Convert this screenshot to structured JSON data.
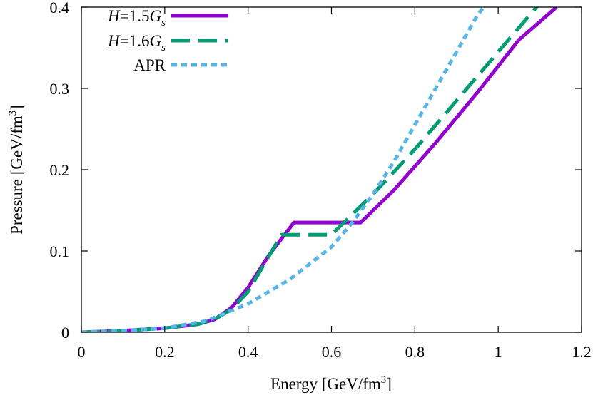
{
  "chart_data": {
    "type": "line",
    "xlabel": "Energy [GeV/fm",
    "xlabel_sup": "3",
    "xlabel_close": "]",
    "ylabel": "Pressure [GeV/fm",
    "ylabel_sup": "3",
    "ylabel_close": "]",
    "xlim": [
      0,
      1.2
    ],
    "ylim": [
      0,
      0.4
    ],
    "xticks": [
      "0",
      "0.2",
      "0.4",
      "0.6",
      "0.8",
      "1",
      "1.2"
    ],
    "yticks": [
      "0",
      "0.1",
      "0.2",
      "0.3",
      "0.4"
    ],
    "grid": false,
    "legend_position": "top-left",
    "series": [
      {
        "name": "H=1.5Gs",
        "legend": {
          "italic1": "H",
          "text": "=1.5",
          "italic2": "G",
          "sub": "s"
        },
        "color": "#9400d3",
        "dash": "solid",
        "x": [
          0,
          0.1,
          0.2,
          0.28,
          0.32,
          0.36,
          0.4,
          0.45,
          0.51,
          0.67,
          0.75,
          0.85,
          0.95,
          1.05,
          1.14
        ],
        "y": [
          0,
          0.002,
          0.005,
          0.01,
          0.016,
          0.03,
          0.055,
          0.095,
          0.135,
          0.135,
          0.175,
          0.233,
          0.295,
          0.36,
          0.4
        ]
      },
      {
        "name": "H=1.6Gs",
        "legend": {
          "italic1": "H",
          "text": "=1.6",
          "italic2": "G",
          "sub": "s"
        },
        "color": "#009e73",
        "dash": "long-dash",
        "x": [
          0,
          0.1,
          0.2,
          0.28,
          0.32,
          0.36,
          0.4,
          0.44,
          0.48,
          0.6,
          0.7,
          0.8,
          0.9,
          1.0,
          1.1
        ],
        "y": [
          0,
          0.002,
          0.005,
          0.01,
          0.016,
          0.028,
          0.05,
          0.085,
          0.12,
          0.12,
          0.17,
          0.225,
          0.285,
          0.345,
          0.405
        ]
      },
      {
        "name": "APR",
        "legend": {
          "italic1": "",
          "text": "APR",
          "italic2": "",
          "sub": ""
        },
        "color": "#56b4e9",
        "dash": "dotted",
        "x": [
          0,
          0.1,
          0.2,
          0.3,
          0.4,
          0.5,
          0.6,
          0.65,
          0.7,
          0.75,
          0.8,
          0.85,
          0.9,
          0.95,
          0.98
        ],
        "y": [
          0,
          0.002,
          0.005,
          0.014,
          0.035,
          0.065,
          0.105,
          0.135,
          0.17,
          0.21,
          0.255,
          0.3,
          0.345,
          0.39,
          0.41
        ]
      }
    ]
  }
}
